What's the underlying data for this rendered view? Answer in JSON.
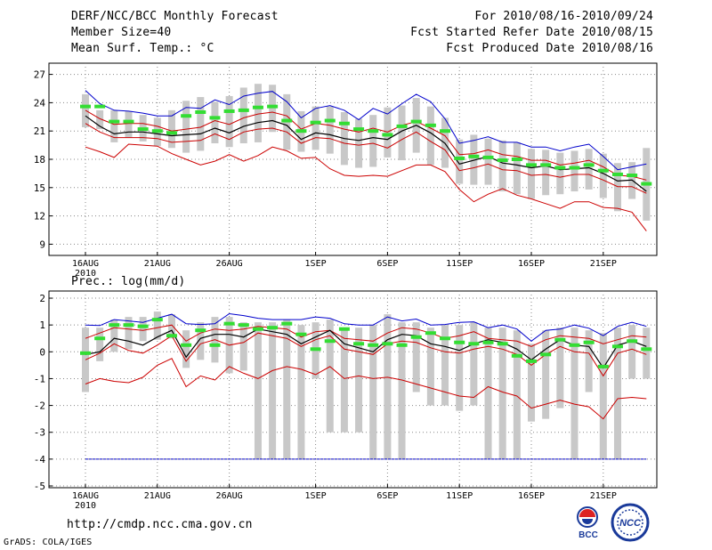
{
  "header": {
    "left_line1": "DERF/NCC/BCC Monthly Forecast",
    "left_line2": "Member Size=40",
    "left_line3": "Mean Surf. Temp.: °C",
    "right_line1": "For 2010/08/16-2010/09/24",
    "right_line2": "Fcst Started Refer Date 2010/08/15",
    "right_line3": "Fcst Produced Date 2010/08/16"
  },
  "footer": {
    "url": "http://cmdp.ncc.cma.gov.cn",
    "credit": "GrADS: COLA/IGES",
    "logo_bcc": "BCC",
    "logo_ncc": "NCC"
  },
  "colors": {
    "mean": "#000000",
    "upper": "#0000cc",
    "lower": "#cc0000",
    "observed": "#33dd33",
    "box": "#c8c8c8",
    "grid": "#888888"
  },
  "chart_data": [
    {
      "type": "line",
      "title": "Mean Surf. Temp.: °C",
      "xlabel": "",
      "ylabel": "°C",
      "ylim": [
        8,
        28
      ],
      "yticks": [
        27,
        24,
        21,
        18,
        15,
        12,
        9
      ],
      "xlim": [
        0,
        40
      ],
      "xticks": [
        {
          "x": 0,
          "label": "16AUG",
          "sub": "2010"
        },
        {
          "x": 5,
          "label": "21AUG"
        },
        {
          "x": 10,
          "label": "26AUG"
        },
        {
          "x": 16,
          "label": "1SEP"
        },
        {
          "x": 21,
          "label": "6SEP"
        },
        {
          "x": 26,
          "label": "11SEP"
        },
        {
          "x": 31,
          "label": "16SEP"
        },
        {
          "x": 36,
          "label": "21SEP"
        }
      ],
      "grid": true,
      "x": [
        0,
        1,
        2,
        3,
        4,
        5,
        6,
        7,
        8,
        9,
        10,
        11,
        12,
        13,
        14,
        15,
        16,
        17,
        18,
        19,
        20,
        21,
        22,
        23,
        24,
        25,
        26,
        27,
        28,
        29,
        30,
        31,
        32,
        33,
        34,
        35,
        36,
        37,
        38,
        39
      ],
      "series": [
        {
          "name": "upper",
          "values": [
            25.3,
            23.9,
            23.2,
            23.1,
            22.9,
            22.6,
            22.6,
            23.5,
            23.4,
            24.3,
            23.8,
            24.7,
            25.0,
            25.2,
            24.1,
            22.4,
            23.4,
            23.7,
            23.2,
            22.2,
            23.4,
            22.8,
            23.9,
            24.9,
            24.1,
            22.3,
            19.7,
            20.0,
            20.4,
            19.8,
            19.8,
            19.3,
            19.3,
            18.9,
            19.3,
            19.6,
            18.3,
            16.9,
            17.2,
            17.5
          ]
        },
        {
          "name": "upper-inner",
          "values": [
            23.2,
            22.3,
            21.7,
            21.8,
            21.8,
            21.5,
            21.0,
            21.2,
            21.4,
            22.1,
            21.7,
            22.4,
            22.8,
            23.0,
            22.6,
            21.2,
            21.8,
            21.6,
            21.2,
            20.9,
            21.3,
            20.9,
            21.6,
            22.0,
            21.3,
            20.5,
            18.5,
            18.6,
            19.0,
            18.5,
            18.3,
            17.9,
            17.9,
            17.4,
            17.6,
            17.9,
            17.2,
            16.3,
            16.2,
            15.8
          ]
        },
        {
          "name": "mean",
          "values": [
            22.6,
            21.5,
            20.7,
            20.9,
            20.9,
            20.7,
            20.5,
            20.6,
            20.7,
            21.3,
            20.8,
            21.5,
            21.9,
            22.1,
            21.6,
            20.1,
            20.8,
            20.6,
            20.2,
            20.0,
            20.3,
            20.1,
            21.0,
            21.6,
            20.8,
            19.7,
            17.5,
            17.9,
            18.3,
            17.6,
            17.4,
            17.1,
            17.3,
            16.9,
            17.0,
            17.1,
            16.5,
            15.7,
            15.8,
            14.6
          ]
        },
        {
          "name": "lower-inner",
          "values": [
            21.8,
            20.9,
            20.3,
            20.3,
            20.3,
            20.2,
            19.8,
            19.9,
            20.0,
            20.7,
            20.1,
            20.9,
            21.2,
            21.3,
            20.9,
            19.7,
            20.3,
            20.2,
            19.7,
            19.5,
            19.7,
            19.2,
            20.1,
            20.9,
            19.9,
            19.0,
            16.8,
            17.1,
            17.5,
            16.9,
            16.8,
            16.3,
            16.4,
            16.1,
            16.4,
            16.4,
            15.8,
            15.1,
            15.1,
            14.4
          ]
        },
        {
          "name": "lower",
          "values": [
            19.3,
            18.8,
            18.2,
            19.6,
            19.5,
            19.4,
            18.6,
            18.0,
            17.4,
            17.8,
            18.5,
            17.8,
            18.4,
            19.3,
            18.9,
            18.1,
            18.2,
            17.0,
            16.3,
            16.2,
            16.3,
            16.2,
            16.8,
            17.4,
            17.4,
            16.7,
            14.8,
            13.5,
            14.3,
            14.9,
            14.2,
            13.8,
            13.3,
            12.8,
            13.5,
            13.5,
            12.9,
            12.8,
            12.4,
            10.4
          ]
        },
        {
          "name": "observed",
          "values": [
            23.6,
            23.6,
            22.0,
            22.0,
            21.2,
            21.0,
            20.8,
            22.6,
            23.0,
            22.4,
            23.1,
            23.2,
            23.5,
            23.6,
            22.1,
            21.0,
            21.9,
            22.1,
            21.8,
            21.2,
            21.0,
            20.6,
            21.5,
            22.0,
            21.6,
            21.0,
            18.1,
            18.3,
            18.2,
            17.9,
            18.0,
            17.4,
            17.4,
            17.1,
            17.1,
            17.4,
            16.8,
            16.4,
            16.3,
            15.4
          ]
        }
      ],
      "boxes": [
        [
          24.9,
          21.4
        ],
        [
          23.2,
          21.2
        ],
        [
          23.2,
          19.8
        ],
        [
          23.1,
          20.3
        ],
        [
          22.7,
          19.9
        ],
        [
          22.4,
          19.4
        ],
        [
          23.2,
          19.2
        ],
        [
          24.2,
          18.7
        ],
        [
          24.6,
          18.9
        ],
        [
          24.1,
          19.7
        ],
        [
          24.7,
          19.3
        ],
        [
          25.6,
          19.7
        ],
        [
          26.0,
          19.8
        ],
        [
          25.9,
          20.9
        ],
        [
          24.9,
          19.0
        ],
        [
          23.1,
          18.8
        ],
        [
          23.6,
          19.0
        ],
        [
          23.6,
          18.6
        ],
        [
          23.0,
          17.4
        ],
        [
          22.3,
          17.1
        ],
        [
          22.7,
          17.2
        ],
        [
          23.5,
          18.2
        ],
        [
          23.7,
          17.9
        ],
        [
          24.5,
          18.7
        ],
        [
          23.6,
          17.4
        ],
        [
          22.4,
          17.1
        ],
        [
          20.1,
          15.4
        ],
        [
          20.6,
          15.3
        ],
        [
          20.2,
          15.3
        ],
        [
          20.0,
          14.6
        ],
        [
          19.8,
          14.3
        ],
        [
          19.1,
          13.8
        ],
        [
          19.0,
          14.2
        ],
        [
          18.7,
          14.3
        ],
        [
          18.9,
          14.6
        ],
        [
          19.1,
          14.8
        ],
        [
          18.6,
          13.9
        ],
        [
          17.6,
          12.5
        ],
        [
          17.7,
          13.8
        ],
        [
          19.2,
          11.5
        ]
      ]
    },
    {
      "type": "line",
      "title": "Prec.: log(mm/d)",
      "xlabel": "",
      "ylabel": "log(mm/d)",
      "ylim": [
        -5,
        2.2
      ],
      "yticks": [
        2,
        1,
        0,
        -1,
        -2,
        -3,
        -4,
        -5
      ],
      "xlim": [
        0,
        40
      ],
      "xticks": [
        {
          "x": 0,
          "label": "16AUG",
          "sub": "2010"
        },
        {
          "x": 5,
          "label": "21AUG"
        },
        {
          "x": 10,
          "label": "26AUG"
        },
        {
          "x": 16,
          "label": "1SEP"
        },
        {
          "x": 21,
          "label": "6SEP"
        },
        {
          "x": 26,
          "label": "11SEP"
        },
        {
          "x": 31,
          "label": "16SEP"
        },
        {
          "x": 36,
          "label": "21SEP"
        }
      ],
      "grid": true,
      "x": [
        0,
        1,
        2,
        3,
        4,
        5,
        6,
        7,
        8,
        9,
        10,
        11,
        12,
        13,
        14,
        15,
        16,
        17,
        18,
        19,
        20,
        21,
        22,
        23,
        24,
        25,
        26,
        27,
        28,
        29,
        30,
        31,
        32,
        33,
        34,
        35,
        36,
        37,
        38,
        39
      ],
      "series": [
        {
          "name": "upper",
          "values": [
            1.0,
            0.98,
            1.2,
            1.15,
            1.1,
            1.25,
            1.4,
            1.05,
            1.02,
            1.05,
            1.42,
            1.35,
            1.25,
            1.2,
            1.2,
            1.2,
            1.3,
            1.25,
            1.05,
            1.0,
            1.0,
            1.3,
            1.15,
            1.22,
            1.0,
            1.02,
            1.1,
            1.12,
            0.9,
            1.0,
            0.85,
            0.4,
            0.8,
            0.85,
            1.0,
            0.88,
            0.6,
            0.95,
            1.1,
            0.95
          ]
        },
        {
          "name": "upper-inner",
          "values": [
            0.5,
            0.7,
            0.9,
            0.85,
            0.8,
            0.9,
            1.0,
            0.4,
            0.7,
            0.85,
            0.8,
            0.85,
            0.95,
            0.9,
            0.85,
            0.55,
            0.75,
            0.8,
            0.5,
            0.45,
            0.4,
            0.7,
            0.9,
            0.85,
            0.7,
            0.5,
            0.6,
            0.75,
            0.5,
            0.45,
            0.4,
            0.2,
            0.45,
            0.6,
            0.55,
            0.5,
            0.3,
            0.45,
            0.6,
            0.55
          ]
        },
        {
          "name": "mean",
          "values": [
            -0.1,
            0.0,
            0.5,
            0.4,
            0.25,
            0.55,
            0.8,
            -0.2,
            0.5,
            0.65,
            0.65,
            0.55,
            0.85,
            0.75,
            0.65,
            0.3,
            0.55,
            0.8,
            0.3,
            0.15,
            0.0,
            0.45,
            0.65,
            0.6,
            0.3,
            0.2,
            0.05,
            0.3,
            0.45,
            0.35,
            0.1,
            -0.3,
            0.1,
            0.45,
            0.25,
            0.2,
            -0.6,
            0.25,
            0.4,
            0.2
          ]
        },
        {
          "name": "lower-inner",
          "values": [
            -0.3,
            -0.05,
            0.3,
            0.05,
            -0.05,
            0.25,
            0.6,
            -0.35,
            0.3,
            0.45,
            0.25,
            0.35,
            0.7,
            0.6,
            0.5,
            0.2,
            0.45,
            0.6,
            0.1,
            0.0,
            -0.1,
            0.3,
            0.4,
            0.35,
            0.15,
            0.0,
            -0.05,
            0.1,
            0.2,
            0.1,
            -0.1,
            -0.5,
            -0.1,
            0.2,
            0.0,
            -0.05,
            -0.9,
            -0.05,
            0.1,
            -0.1
          ]
        },
        {
          "name": "lower",
          "values": [
            -1.2,
            -1.0,
            -1.1,
            -1.15,
            -0.95,
            -0.5,
            -0.25,
            -1.3,
            -0.9,
            -1.05,
            -0.55,
            -0.8,
            -1.0,
            -0.7,
            -0.55,
            -0.65,
            -0.85,
            -0.55,
            -1.0,
            -0.9,
            -1.0,
            -0.95,
            -1.05,
            -1.2,
            -1.35,
            -1.5,
            -1.65,
            -1.7,
            -1.3,
            -1.5,
            -1.65,
            -2.1,
            -1.95,
            -1.8,
            -1.95,
            -2.05,
            -2.5,
            -1.75,
            -1.7,
            -1.75
          ]
        },
        {
          "name": "bottom",
          "values": [
            -4,
            -4,
            -4,
            -4,
            -4,
            -4,
            -4,
            -4,
            -4,
            -4,
            -4,
            -4,
            -4,
            -4,
            -4,
            -4,
            -4,
            -4,
            -4,
            -4,
            -4,
            -4,
            -4,
            -4,
            -4,
            -4,
            -4,
            -4,
            -4,
            -4,
            -4,
            -4,
            -4,
            -4,
            -4,
            -4,
            -4,
            -4,
            -4,
            -4
          ]
        },
        {
          "name": "observed",
          "values": [
            -0.05,
            0.5,
            1.0,
            1.0,
            0.95,
            1.2,
            0.6,
            0.25,
            0.8,
            0.25,
            1.05,
            1.0,
            0.85,
            0.9,
            1.05,
            0.65,
            0.1,
            0.4,
            0.85,
            0.3,
            0.25,
            0.3,
            0.25,
            0.55,
            0.7,
            0.5,
            0.35,
            0.3,
            0.35,
            0.3,
            -0.15,
            -0.35,
            -0.1,
            0.45,
            0.25,
            0.35,
            -0.55,
            0.2,
            0.4,
            0.1
          ]
        }
      ],
      "boxes": [
        [
          0.9,
          -1.5
        ],
        [
          0.9,
          -0.35
        ],
        [
          1.2,
          0.0
        ],
        [
          1.3,
          0.1
        ],
        [
          1.3,
          0.4
        ],
        [
          1.5,
          0.45
        ],
        [
          1.4,
          0.5
        ],
        [
          0.8,
          -0.6
        ],
        [
          1.1,
          -0.3
        ],
        [
          1.3,
          -0.4
        ],
        [
          1.3,
          -0.8
        ],
        [
          1.1,
          -0.7
        ],
        [
          1.1,
          -4.0
        ],
        [
          1.1,
          -4.0
        ],
        [
          1.2,
          -4.0
        ],
        [
          1.0,
          -4.0
        ],
        [
          1.1,
          -1.0
        ],
        [
          1.2,
          -3.0
        ],
        [
          0.9,
          -3.0
        ],
        [
          0.9,
          -3.0
        ],
        [
          1.0,
          -4.0
        ],
        [
          1.4,
          -4.0
        ],
        [
          1.1,
          -4.0
        ],
        [
          1.1,
          -1.5
        ],
        [
          0.9,
          -2.0
        ],
        [
          1.0,
          -2.0
        ],
        [
          1.0,
          -2.2
        ],
        [
          1.1,
          -2.0
        ],
        [
          0.9,
          -4.0
        ],
        [
          0.9,
          -4.0
        ],
        [
          0.8,
          -4.0
        ],
        [
          0.3,
          -2.6
        ],
        [
          0.8,
          -2.5
        ],
        [
          0.9,
          -2.1
        ],
        [
          0.9,
          -4.0
        ],
        [
          0.8,
          -1.5
        ],
        [
          0.7,
          -4.0
        ],
        [
          0.9,
          -4.0
        ],
        [
          1.0,
          -1.0
        ],
        [
          0.9,
          -1.0
        ]
      ]
    }
  ]
}
